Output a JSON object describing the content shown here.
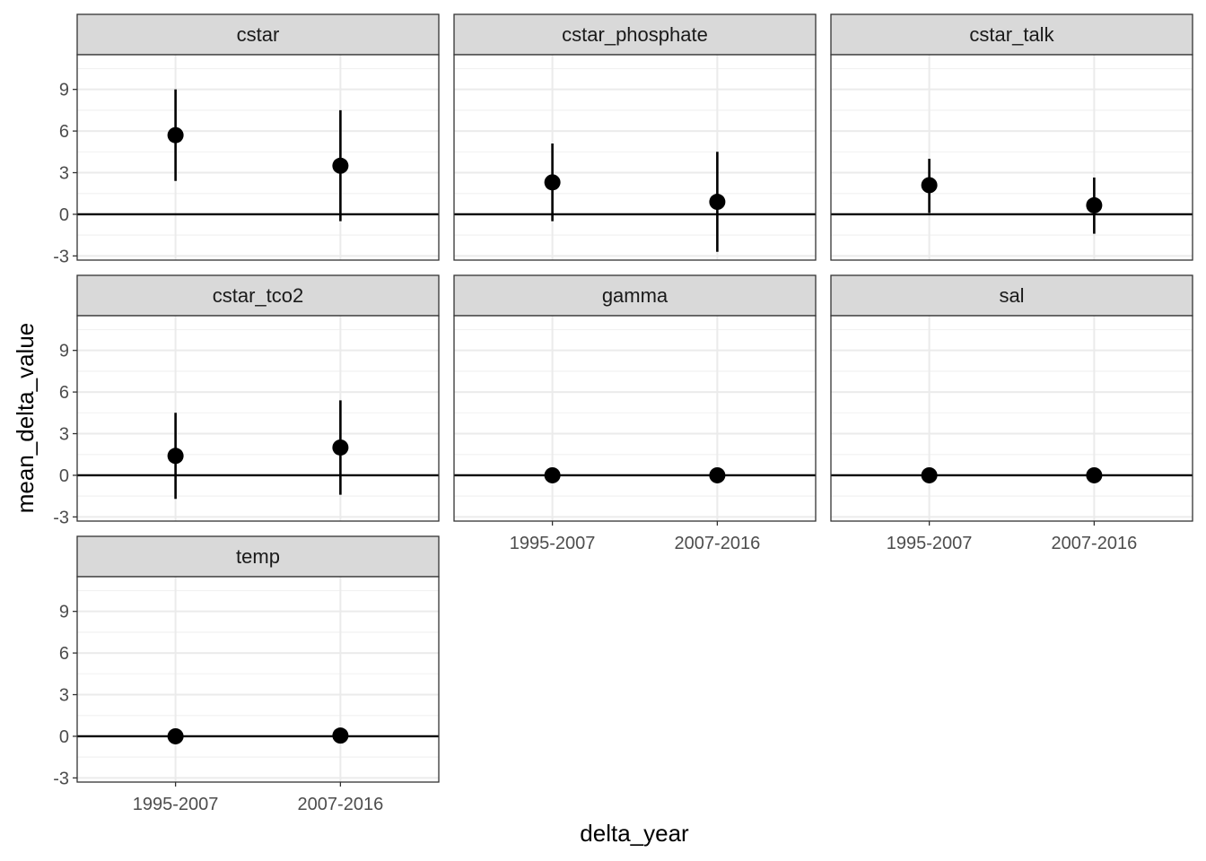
{
  "chart_data": {
    "type": "scatter",
    "layout": "faceted pointrange with error bars",
    "xlabel": "delta_year",
    "ylabel": "mean_delta_value",
    "categories": [
      "1995-2007",
      "2007-2016"
    ],
    "ylim": [
      -3.3,
      11.5
    ],
    "yticks": [
      -3,
      0,
      3,
      6,
      9
    ],
    "ytick_labels": [
      "-3",
      "0",
      "3",
      "6",
      "9"
    ],
    "hline": 0,
    "grid": true,
    "colors": {
      "point": "#000000",
      "strip_fill": "#d9d9d9",
      "grid_major": "#ebebeb",
      "grid_minor": "#f2f2f2",
      "panel_border": "#333333"
    },
    "facets": [
      {
        "name": "cstar",
        "values": [
          5.7,
          3.5
        ],
        "lower": [
          2.4,
          -0.5
        ],
        "upper": [
          9.0,
          7.5
        ]
      },
      {
        "name": "cstar_phosphate",
        "values": [
          2.3,
          0.9
        ],
        "lower": [
          -0.5,
          -2.7
        ],
        "upper": [
          5.1,
          4.5
        ]
      },
      {
        "name": "cstar_talk",
        "values": [
          2.1,
          0.65
        ],
        "lower": [
          0.1,
          -1.4
        ],
        "upper": [
          4.0,
          2.65
        ]
      },
      {
        "name": "cstar_tco2",
        "values": [
          1.4,
          2.0
        ],
        "lower": [
          -1.7,
          -1.4
        ],
        "upper": [
          4.5,
          5.4
        ]
      },
      {
        "name": "gamma",
        "values": [
          0.0,
          0.0
        ],
        "lower": [
          0.0,
          0.0
        ],
        "upper": [
          0.0,
          0.0
        ]
      },
      {
        "name": "sal",
        "values": [
          0.0,
          0.0
        ],
        "lower": [
          0.0,
          0.0
        ],
        "upper": [
          0.0,
          0.0
        ]
      },
      {
        "name": "temp",
        "values": [
          0.0,
          0.05
        ],
        "lower": [
          0.0,
          0.05
        ],
        "upper": [
          0.0,
          0.05
        ]
      }
    ]
  }
}
